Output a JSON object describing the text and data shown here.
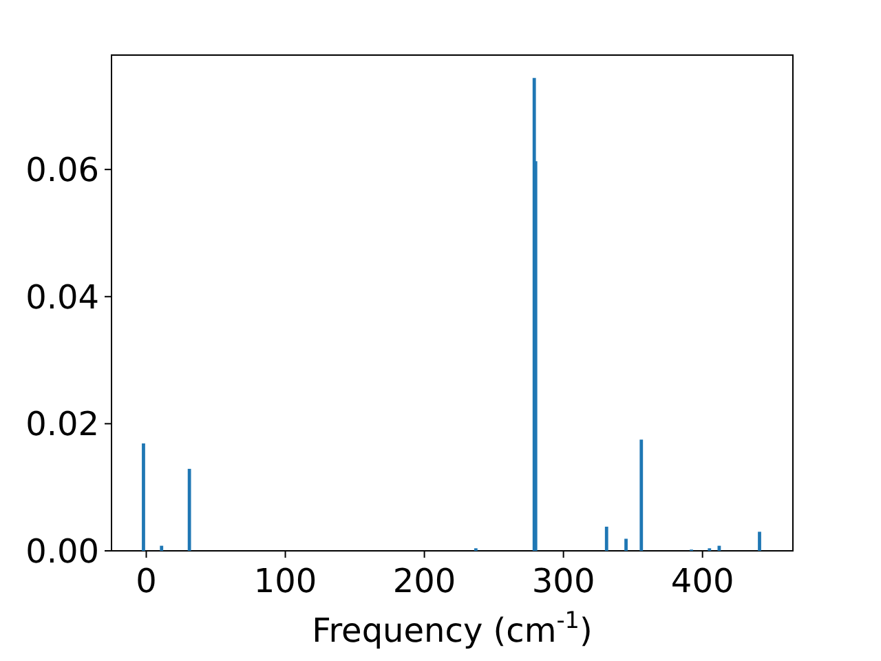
{
  "chart_data": {
    "type": "bar",
    "xlabel": "Frequency (cm$^{-1}$)",
    "x": [
      -2,
      11,
      31,
      237,
      279,
      280,
      331,
      345,
      356,
      392,
      405,
      412,
      441
    ],
    "values": [
      0.0169,
      0.0008,
      0.0129,
      0.0004,
      0.0744,
      0.0613,
      0.0038,
      0.0019,
      0.0175,
      0.0002,
      0.0004,
      0.0008,
      0.003
    ],
    "color": "#1f77b4",
    "xlim": [
      -25,
      465
    ],
    "xticks": [
      0,
      100,
      200,
      300,
      400
    ],
    "ylim": [
      0,
      0.078
    ],
    "yticks": [
      {
        "value": 0,
        "label": "0.00"
      },
      {
        "value": 0.02,
        "label": "0.02"
      },
      {
        "value": 0.04,
        "label": "0.04"
      },
      {
        "value": 0.06,
        "label": "0.06"
      }
    ]
  }
}
